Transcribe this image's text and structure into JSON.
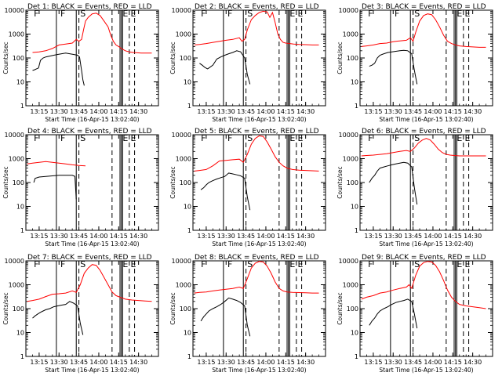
{
  "chart_data": {
    "type": "line",
    "y_scale": "log",
    "ylim": [
      1,
      10000
    ],
    "y_tick_labels": [
      "1",
      "10",
      "100",
      "1000",
      "10000"
    ],
    "x_tick_labels": [
      "13:15",
      "13:30",
      "13:45",
      "14:00",
      "14:15",
      "14:30"
    ],
    "x_tick_minutes": [
      795,
      810,
      825,
      840,
      855,
      870
    ],
    "xlim_minutes": [
      785,
      885
    ],
    "ylabel": "Counts/sec",
    "xlabel": "Start Time (16-Apr-15 13:02:40)",
    "series_colors": {
      "events": "#000000",
      "lld": "#ff0000"
    },
    "panels": [
      {
        "title": "Det 1: BLACK = Events, RED = LLD",
        "markers": [
          "F",
          "S",
          "E"
        ],
        "events": {
          "x": [
            790,
            791.5,
            793,
            794.5,
            796,
            798,
            800,
            803,
            806,
            809,
            812,
            815,
            818,
            821,
            824,
            825.5,
            827,
            828,
            829
          ],
          "y": [
            30,
            32,
            35,
            38,
            80,
            100,
            110,
            120,
            130,
            140,
            150,
            160,
            150,
            140,
            130,
            110,
            30,
            12,
            7
          ]
        },
        "lld": {
          "x": [
            790,
            795,
            800,
            805,
            810,
            815,
            820,
            823,
            825,
            827,
            828.5,
            830,
            832,
            835,
            838,
            841,
            844,
            847,
            849,
            851,
            853,
            855,
            857,
            860,
            863,
            866,
            869,
            872,
            875,
            878,
            880
          ],
          "y": [
            170,
            180,
            200,
            250,
            350,
            380,
            420,
            600,
            500,
            600,
            1500,
            3500,
            5000,
            7000,
            7500,
            6000,
            3500,
            2000,
            900,
            500,
            350,
            300,
            250,
            200,
            180,
            170,
            165,
            160,
            160,
            160,
            160
          ]
        }
      },
      {
        "title": "Det 2: BLACK = Events, RED = LLD",
        "markers": [
          "F",
          "S",
          "E"
        ],
        "events": {
          "x": [
            790,
            792,
            794,
            796,
            797,
            800,
            803,
            806,
            809,
            812,
            815,
            818,
            821,
            824,
            826,
            828
          ],
          "y": [
            60,
            50,
            40,
            35,
            38,
            50,
            90,
            110,
            130,
            150,
            170,
            200,
            180,
            100,
            20,
            8
          ]
        },
        "lld": {
          "x": [
            786,
            790,
            795,
            800,
            805,
            810,
            815,
            820,
            822,
            824,
            826,
            829,
            832,
            835,
            838,
            841,
            843,
            845,
            847,
            849,
            851,
            853,
            855,
            858,
            861,
            865,
            870,
            875,
            880
          ],
          "y": [
            350,
            370,
            400,
            450,
            500,
            550,
            600,
            700,
            500,
            600,
            1500,
            4000,
            6000,
            8000,
            9000,
            8500,
            5000,
            8000,
            3000,
            1000,
            600,
            450,
            420,
            400,
            380,
            370,
            360,
            350,
            350
          ]
        }
      },
      {
        "title": "Det 3: BLACK = Events, RED = LLD",
        "markers": [
          "F",
          "S",
          "E"
        ],
        "events": {
          "x": [
            792,
            794,
            796,
            798,
            800,
            803,
            806,
            809,
            812,
            815,
            818,
            821,
            824,
            826,
            828
          ],
          "y": [
            45,
            50,
            60,
            100,
            130,
            150,
            170,
            180,
            190,
            200,
            210,
            200,
            150,
            30,
            8
          ]
        },
        "lld": {
          "x": [
            786,
            790,
            795,
            800,
            805,
            810,
            815,
            820,
            823,
            825,
            827,
            830,
            833,
            836,
            839,
            842,
            845,
            848,
            851,
            854,
            857,
            860,
            865,
            870,
            875,
            880
          ],
          "y": [
            300,
            320,
            350,
            400,
            420,
            480,
            520,
            550,
            700,
            500,
            1200,
            3500,
            6000,
            7000,
            6500,
            4000,
            2000,
            900,
            500,
            400,
            350,
            320,
            300,
            290,
            280,
            280
          ]
        }
      },
      {
        "title": "Det 4: BLACK = Events, RED = LLD",
        "markers": [
          "F",
          "S",
          "E"
        ],
        "events": {
          "x": [
            791,
            792,
            795,
            800,
            805,
            810,
            815,
            820,
            822,
            823
          ],
          "y": [
            100,
            150,
            170,
            180,
            190,
            200,
            200,
            200,
            180,
            20
          ]
        },
        "lld": {
          "x": [
            786,
            790,
            795,
            800,
            805,
            810,
            815,
            820,
            825,
            830
          ],
          "y": [
            600,
            650,
            700,
            750,
            700,
            650,
            600,
            550,
            520,
            500
          ]
        }
      },
      {
        "title": "Det 5: BLACK = Events, RED = LLD",
        "markers": [
          "F",
          "S",
          "E"
        ],
        "events": {
          "x": [
            791,
            793,
            795,
            797,
            800,
            803,
            806,
            809,
            812,
            815,
            818,
            821,
            824,
            826,
            828
          ],
          "y": [
            50,
            60,
            80,
            100,
            120,
            140,
            160,
            180,
            250,
            230,
            210,
            190,
            150,
            25,
            7
          ]
        },
        "lld": {
          "x": [
            786,
            790,
            795,
            800,
            805,
            810,
            815,
            820,
            823,
            826,
            829,
            832,
            835,
            838,
            841,
            844,
            847,
            850,
            853,
            856,
            860,
            865,
            870,
            875,
            880
          ],
          "y": [
            300,
            320,
            350,
            500,
            800,
            850,
            900,
            950,
            700,
            1500,
            4000,
            7000,
            9000,
            8500,
            5000,
            2500,
            1200,
            700,
            500,
            400,
            350,
            330,
            320,
            310,
            300
          ]
        }
      },
      {
        "title": "Det 6: BLACK = Events, RED = LLD",
        "markers": [
          "F",
          "S",
          "E"
        ],
        "events": {
          "x": [
            792,
            794,
            796,
            798,
            800,
            803,
            806,
            809,
            812,
            815,
            818,
            821,
            824,
            826,
            828
          ],
          "y": [
            100,
            150,
            200,
            300,
            400,
            450,
            500,
            550,
            600,
            650,
            700,
            650,
            450,
            60,
            12
          ]
        },
        "lld": {
          "x": [
            786,
            790,
            795,
            800,
            805,
            810,
            815,
            820,
            823,
            826,
            829,
            832,
            835,
            838,
            841,
            844,
            847,
            850,
            853,
            856,
            860,
            865,
            870,
            875,
            880
          ],
          "y": [
            1300,
            1350,
            1400,
            1500,
            1600,
            1800,
            2000,
            2200,
            2000,
            2800,
            4500,
            6000,
            7000,
            6000,
            4000,
            2500,
            1800,
            1500,
            1400,
            1350,
            1300,
            1300,
            1300,
            1300,
            1300
          ]
        }
      },
      {
        "title": "Det 7: BLACK = Events, RED = LLD",
        "markers": [
          "F",
          "S",
          "E"
        ],
        "events": {
          "x": [
            790,
            792,
            794,
            796,
            798,
            800,
            803,
            806,
            809,
            812,
            815,
            818,
            821,
            824,
            826,
            828
          ],
          "y": [
            40,
            50,
            60,
            70,
            80,
            90,
            100,
            120,
            130,
            140,
            150,
            200,
            170,
            130,
            25,
            8
          ]
        },
        "lld": {
          "x": [
            786,
            790,
            795,
            800,
            805,
            810,
            815,
            820,
            823,
            826,
            829,
            832,
            835,
            838,
            841,
            844,
            847,
            850,
            853,
            856,
            860,
            865,
            870,
            875,
            880
          ],
          "y": [
            200,
            220,
            250,
            320,
            400,
            420,
            450,
            550,
            480,
            1000,
            3000,
            5000,
            7000,
            6500,
            4000,
            2000,
            1000,
            500,
            350,
            300,
            250,
            230,
            220,
            210,
            200
          ]
        }
      },
      {
        "title": "Det 8: BLACK = Events, RED = LLD",
        "markers": [
          "F",
          "S",
          "E"
        ],
        "events": {
          "x": [
            791,
            793,
            795,
            797,
            800,
            803,
            806,
            809,
            812,
            815,
            818,
            821,
            824,
            826,
            828
          ],
          "y": [
            30,
            45,
            60,
            80,
            100,
            120,
            150,
            200,
            280,
            250,
            220,
            180,
            130,
            20,
            7
          ]
        },
        "lld": {
          "x": [
            786,
            790,
            795,
            800,
            805,
            810,
            815,
            820,
            823,
            826,
            829,
            832,
            835,
            838,
            841,
            844,
            847,
            850,
            853,
            856,
            860,
            865,
            870,
            875,
            880
          ],
          "y": [
            450,
            480,
            500,
            550,
            600,
            650,
            700,
            800,
            700,
            1800,
            5000,
            8000,
            9500,
            9000,
            6000,
            3000,
            1300,
            700,
            550,
            500,
            480,
            470,
            460,
            450,
            450
          ]
        }
      },
      {
        "title": "Det 9: BLACK = Events, RED = LLD",
        "markers": [
          "F",
          "S",
          "E"
        ],
        "events": {
          "x": [
            792,
            794,
            796,
            798,
            800,
            803,
            806,
            809,
            812,
            815,
            818,
            821,
            824,
            826,
            828
          ],
          "y": [
            20,
            30,
            40,
            60,
            80,
            100,
            120,
            150,
            180,
            200,
            220,
            250,
            200,
            60,
            15
          ]
        },
        "lld": {
          "x": [
            786,
            790,
            795,
            800,
            805,
            810,
            815,
            820,
            822,
            824,
            827,
            830,
            833,
            836,
            839,
            842,
            845,
            848,
            851,
            854,
            857,
            860,
            865,
            870,
            875,
            880
          ],
          "y": [
            250,
            300,
            350,
            450,
            500,
            600,
            700,
            800,
            1000,
            700,
            2500,
            6000,
            8500,
            9500,
            9000,
            6500,
            3500,
            1500,
            600,
            300,
            200,
            150,
            130,
            120,
            110,
            100
          ]
        }
      }
    ]
  }
}
